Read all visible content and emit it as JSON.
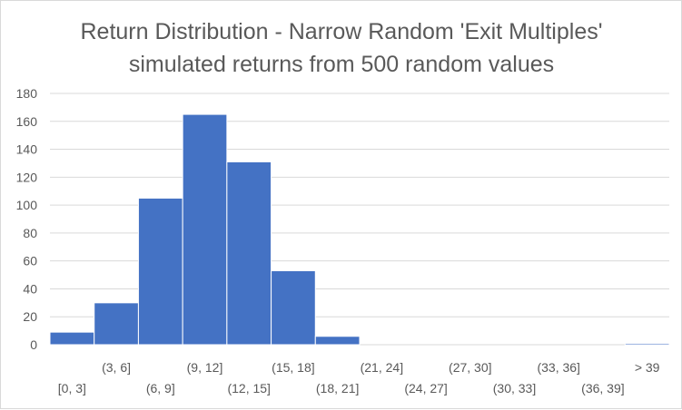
{
  "chart_data": {
    "type": "bar",
    "title": "Return Distribution - Narrow Random 'Exit Multiples'",
    "subtitle": "simulated returns from 500 random values",
    "xlabel": "",
    "ylabel": "",
    "categories": [
      "[0, 3]",
      "(3, 6]",
      "(6, 9]",
      "(9, 12]",
      "(12, 15]",
      "(15, 18]",
      "(18, 21]",
      "(21, 24]",
      "(24, 27]",
      "(27, 30]",
      "(30, 33]",
      "(33, 36]",
      "(36, 39]",
      "> 39"
    ],
    "values": [
      9,
      30,
      105,
      165,
      131,
      53,
      6,
      0,
      0,
      0,
      0,
      0,
      0,
      1
    ],
    "ylim": [
      0,
      180
    ],
    "yticks": [
      "0",
      "20",
      "40",
      "60",
      "80",
      "100",
      "120",
      "140",
      "160",
      "180"
    ],
    "grid": true,
    "legend": "none",
    "bar_color": "#4472c4",
    "gridline_color": "#d9d9d9",
    "text_color": "#595959"
  }
}
